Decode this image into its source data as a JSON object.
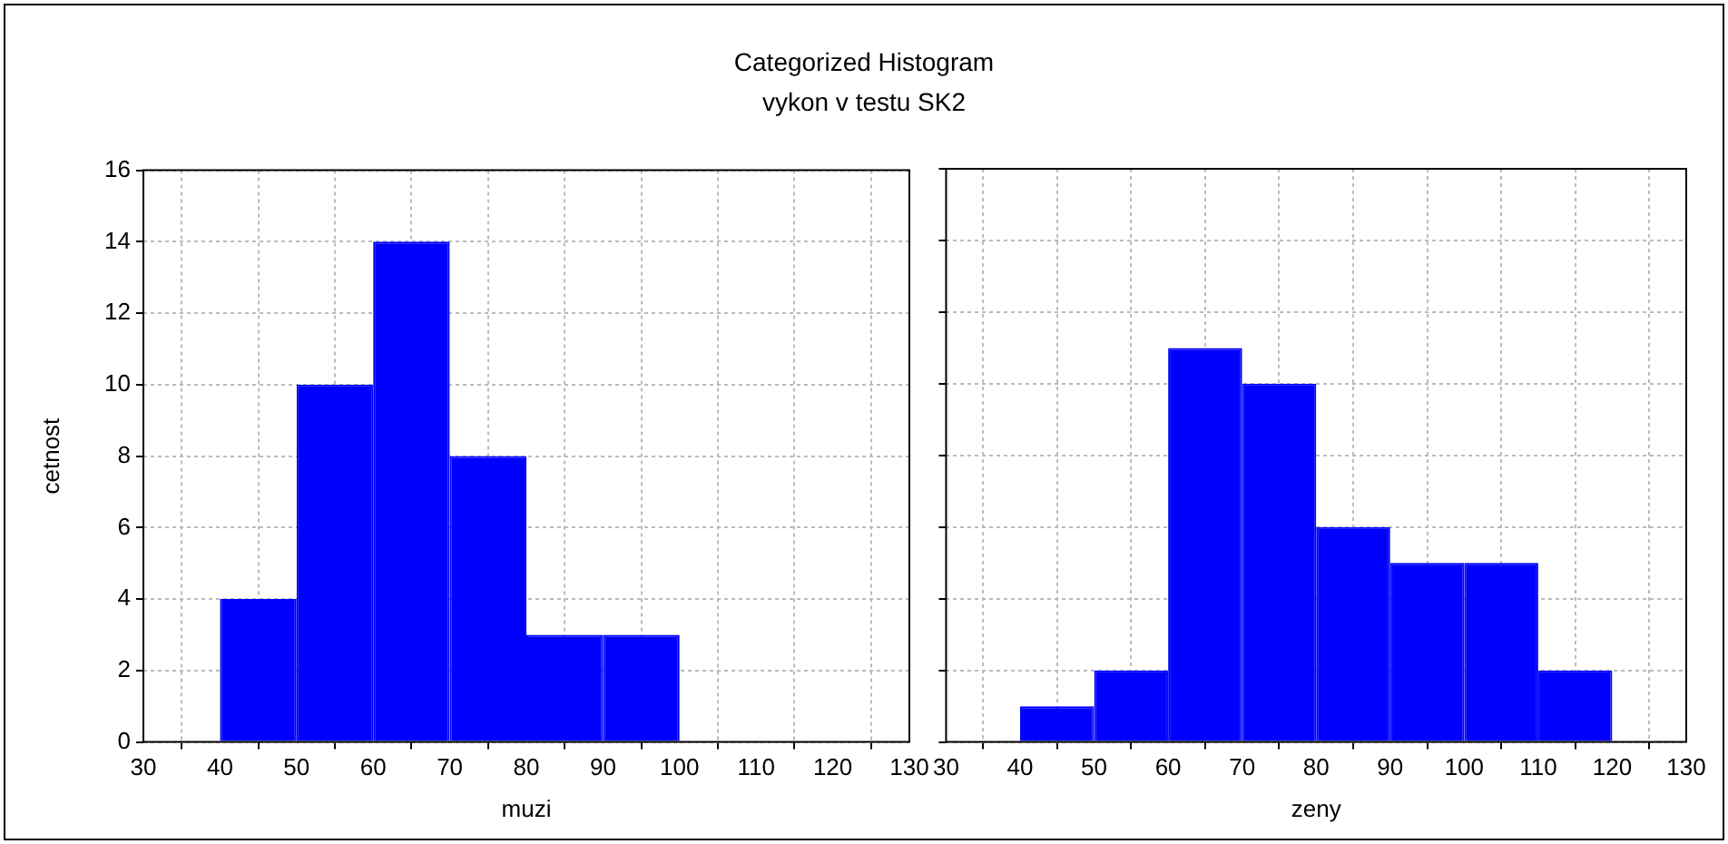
{
  "chart_data": [
    {
      "type": "histogram",
      "title": "Categorized Histogram",
      "subtitle": "vykon v testu SK2",
      "xlabel": "muzi",
      "ylabel": "cetnost",
      "bins": [
        30,
        40,
        50,
        60,
        70,
        80,
        90,
        100,
        110,
        120,
        130
      ],
      "values": [
        0,
        4,
        10,
        14,
        8,
        3,
        3,
        0,
        0,
        0
      ],
      "color": "#0000ff",
      "xlim": [
        30,
        130
      ],
      "xticks": [
        30,
        40,
        50,
        60,
        70,
        80,
        90,
        100,
        110,
        120,
        130
      ],
      "ylim": [
        0,
        16
      ],
      "yticks": [
        0,
        2,
        4,
        6,
        8,
        10,
        12,
        14,
        16
      ],
      "grid": true
    },
    {
      "type": "histogram",
      "xlabel": "zeny",
      "bins": [
        30,
        40,
        50,
        60,
        70,
        80,
        90,
        100,
        110,
        120,
        130
      ],
      "values": [
        0,
        1,
        2,
        11,
        10,
        6,
        5,
        5,
        2,
        0
      ],
      "color": "#0000ff",
      "xlim": [
        30,
        130
      ],
      "xticks": [
        30,
        40,
        50,
        60,
        70,
        80,
        90,
        100,
        110,
        120,
        130
      ],
      "ylim": [
        0,
        16
      ],
      "yticks": [
        0,
        2,
        4,
        6,
        8,
        10,
        12,
        14,
        16
      ],
      "grid": true,
      "tick_labels": "x"
    }
  ]
}
